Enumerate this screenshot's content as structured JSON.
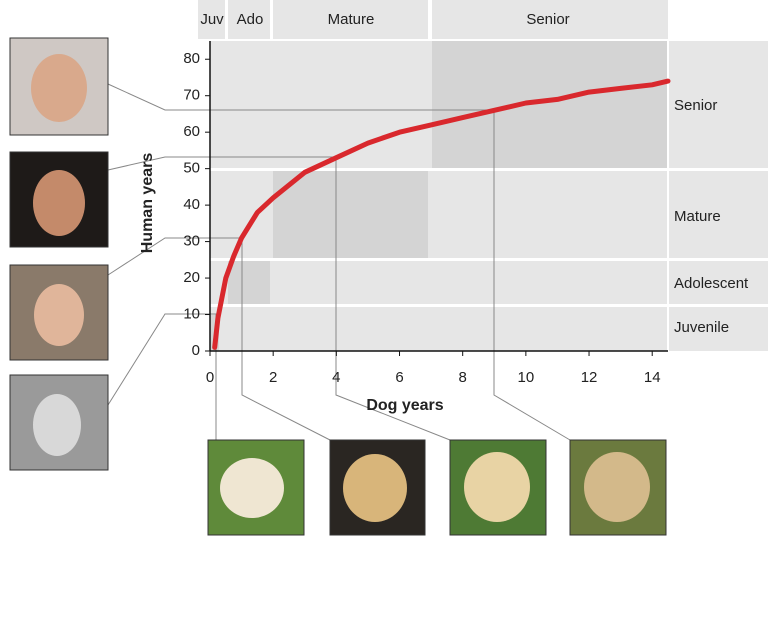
{
  "chart_data": {
    "type": "line",
    "x": [
      0.15,
      0.25,
      0.5,
      0.75,
      1,
      1.5,
      2,
      3,
      4,
      5,
      6,
      7,
      8,
      9,
      10,
      11,
      12,
      13,
      14,
      14.5
    ],
    "values": [
      1,
      9,
      20,
      26,
      31,
      38,
      42,
      49,
      53,
      57,
      60,
      62,
      64,
      66,
      68,
      69,
      71,
      72,
      73,
      74
    ],
    "color": "#d9282d",
    "xlabel": "Dog years",
    "ylabel": "Human years",
    "xlim": [
      0,
      14.5
    ],
    "ylim": [
      0,
      85
    ],
    "xticks": [
      0,
      2,
      4,
      6,
      8,
      10,
      12,
      14
    ],
    "yticks": [
      0,
      10,
      20,
      30,
      40,
      50,
      60,
      70,
      80
    ],
    "stage_labels_top": [
      "Juv",
      "Ado",
      "Mature",
      "Senior"
    ],
    "stage_labels_right": [
      "Senior",
      "Mature",
      "Adolescent",
      "Juvenile"
    ]
  }
}
